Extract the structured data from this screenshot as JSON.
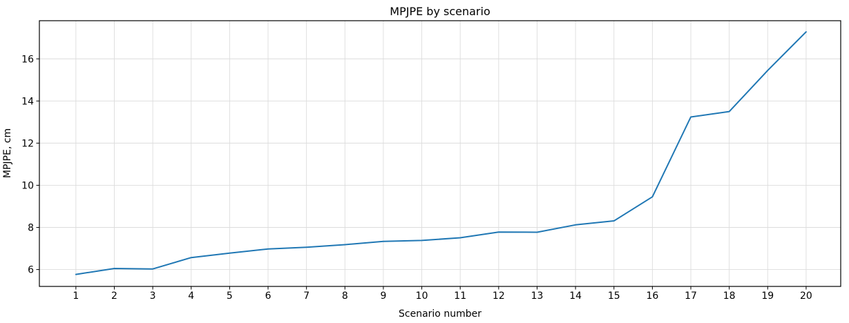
{
  "chart_data": {
    "type": "line",
    "title": "MPJPE by scenario",
    "xlabel": "Scenario number",
    "ylabel": "MPJPE, cm",
    "x": [
      1,
      2,
      3,
      4,
      5,
      6,
      7,
      8,
      9,
      10,
      11,
      12,
      13,
      14,
      15,
      16,
      17,
      18,
      19,
      20
    ],
    "values": [
      5.77,
      6.05,
      6.03,
      6.57,
      6.78,
      6.98,
      7.06,
      7.18,
      7.34,
      7.38,
      7.51,
      7.78,
      7.77,
      8.12,
      8.31,
      9.45,
      13.24,
      13.5,
      15.45,
      17.28
    ],
    "xticks": [
      1,
      2,
      3,
      4,
      5,
      6,
      7,
      8,
      9,
      10,
      11,
      12,
      13,
      14,
      15,
      16,
      17,
      18,
      19,
      20
    ],
    "yticks": [
      6,
      8,
      10,
      12,
      14,
      16
    ],
    "xlim": [
      0.05,
      20.9
    ],
    "ylim": [
      5.2,
      17.81
    ],
    "grid": true,
    "legend": false,
    "line_color": "#1f77b4",
    "grid_color": "#dcdcdc",
    "axis_color": "#000000"
  }
}
